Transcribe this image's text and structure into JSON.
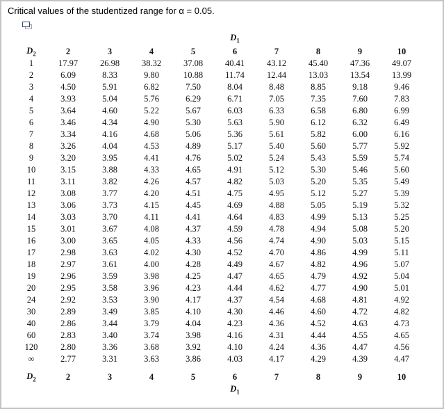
{
  "title": "Critical values of the studentized range for α = 0.05.",
  "icon": {
    "name": "overlapping-windows-icon"
  },
  "table": {
    "col_group_label": {
      "base": "D",
      "sub": "1"
    },
    "row_group_label": {
      "base": "D",
      "sub": "2"
    },
    "column_headers": [
      "2",
      "3",
      "4",
      "5",
      "6",
      "7",
      "8",
      "9",
      "10"
    ],
    "rows": [
      {
        "label": "1",
        "values": [
          "17.97",
          "26.98",
          "38.32",
          "37.08",
          "40.41",
          "43.12",
          "45.40",
          "47.36",
          "49.07"
        ]
      },
      {
        "label": "2",
        "values": [
          "6.09",
          "8.33",
          "9.80",
          "10.88",
          "11.74",
          "12.44",
          "13.03",
          "13.54",
          "13.99"
        ]
      },
      {
        "label": "3",
        "values": [
          "4.50",
          "5.91",
          "6.82",
          "7.50",
          "8.04",
          "8.48",
          "8.85",
          "9.18",
          "9.46"
        ]
      },
      {
        "label": "4",
        "values": [
          "3.93",
          "5.04",
          "5.76",
          "6.29",
          "6.71",
          "7.05",
          "7.35",
          "7.60",
          "7.83"
        ]
      },
      {
        "label": "5",
        "values": [
          "3.64",
          "4.60",
          "5.22",
          "5.67",
          "6.03",
          "6.33",
          "6.58",
          "6.80",
          "6.99"
        ]
      },
      {
        "label": "6",
        "values": [
          "3.46",
          "4.34",
          "4.90",
          "5.30",
          "5.63",
          "5.90",
          "6.12",
          "6.32",
          "6.49"
        ]
      },
      {
        "label": "7",
        "values": [
          "3.34",
          "4.16",
          "4.68",
          "5.06",
          "5.36",
          "5.61",
          "5.82",
          "6.00",
          "6.16"
        ]
      },
      {
        "label": "8",
        "values": [
          "3.26",
          "4.04",
          "4.53",
          "4.89",
          "5.17",
          "5.40",
          "5.60",
          "5.77",
          "5.92"
        ]
      },
      {
        "label": "9",
        "values": [
          "3.20",
          "3.95",
          "4.41",
          "4.76",
          "5.02",
          "5.24",
          "5.43",
          "5.59",
          "5.74"
        ]
      },
      {
        "label": "10",
        "values": [
          "3.15",
          "3.88",
          "4.33",
          "4.65",
          "4.91",
          "5.12",
          "5.30",
          "5.46",
          "5.60"
        ]
      },
      {
        "label": "11",
        "values": [
          "3.11",
          "3.82",
          "4.26",
          "4.57",
          "4.82",
          "5.03",
          "5.20",
          "5.35",
          "5.49"
        ]
      },
      {
        "label": "12",
        "values": [
          "3.08",
          "3.77",
          "4.20",
          "4.51",
          "4.75",
          "4.95",
          "5.12",
          "5.27",
          "5.39"
        ]
      },
      {
        "label": "13",
        "values": [
          "3.06",
          "3.73",
          "4.15",
          "4.45",
          "4.69",
          "4.88",
          "5.05",
          "5.19",
          "5.32"
        ]
      },
      {
        "label": "14",
        "values": [
          "3.03",
          "3.70",
          "4.11",
          "4.41",
          "4.64",
          "4.83",
          "4.99",
          "5.13",
          "5.25"
        ]
      },
      {
        "label": "15",
        "values": [
          "3.01",
          "3.67",
          "4.08",
          "4.37",
          "4.59",
          "4.78",
          "4.94",
          "5.08",
          "5.20"
        ]
      },
      {
        "label": "16",
        "values": [
          "3.00",
          "3.65",
          "4.05",
          "4.33",
          "4.56",
          "4.74",
          "4.90",
          "5.03",
          "5.15"
        ]
      },
      {
        "label": "17",
        "values": [
          "2.98",
          "3.63",
          "4.02",
          "4.30",
          "4.52",
          "4.70",
          "4.86",
          "4.99",
          "5.11"
        ]
      },
      {
        "label": "18",
        "values": [
          "2.97",
          "3.61",
          "4.00",
          "4.28",
          "4.49",
          "4.67",
          "4.82",
          "4.96",
          "5.07"
        ]
      },
      {
        "label": "19",
        "values": [
          "2.96",
          "3.59",
          "3.98",
          "4.25",
          "4.47",
          "4.65",
          "4.79",
          "4.92",
          "5.04"
        ]
      },
      {
        "label": "20",
        "values": [
          "2.95",
          "3.58",
          "3.96",
          "4.23",
          "4.44",
          "4.62",
          "4.77",
          "4.90",
          "5.01"
        ]
      },
      {
        "label": "24",
        "values": [
          "2.92",
          "3.53",
          "3.90",
          "4.17",
          "4.37",
          "4.54",
          "4.68",
          "4.81",
          "4.92"
        ]
      },
      {
        "label": "30",
        "values": [
          "2.89",
          "3.49",
          "3.85",
          "4.10",
          "4.30",
          "4.46",
          "4.60",
          "4.72",
          "4.82"
        ]
      },
      {
        "label": "40",
        "values": [
          "2.86",
          "3.44",
          "3.79",
          "4.04",
          "4.23",
          "4.36",
          "4.52",
          "4.63",
          "4.73"
        ]
      },
      {
        "label": "60",
        "values": [
          "2.83",
          "3.40",
          "3.74",
          "3.98",
          "4.16",
          "4.31",
          "4.44",
          "4.55",
          "4.65"
        ]
      },
      {
        "label": "120",
        "values": [
          "2.80",
          "3.36",
          "3.68",
          "3.92",
          "4.10",
          "4.24",
          "4.36",
          "4.47",
          "4.56"
        ]
      },
      {
        "label": "∞",
        "values": [
          "2.77",
          "3.31",
          "3.63",
          "3.86",
          "4.03",
          "4.17",
          "4.29",
          "4.39",
          "4.47"
        ]
      }
    ]
  },
  "colors": {
    "border": "#c3c3c3",
    "text": "#111111",
    "icon_front": "#3d4b66",
    "icon_back": "#9aa3ad"
  }
}
